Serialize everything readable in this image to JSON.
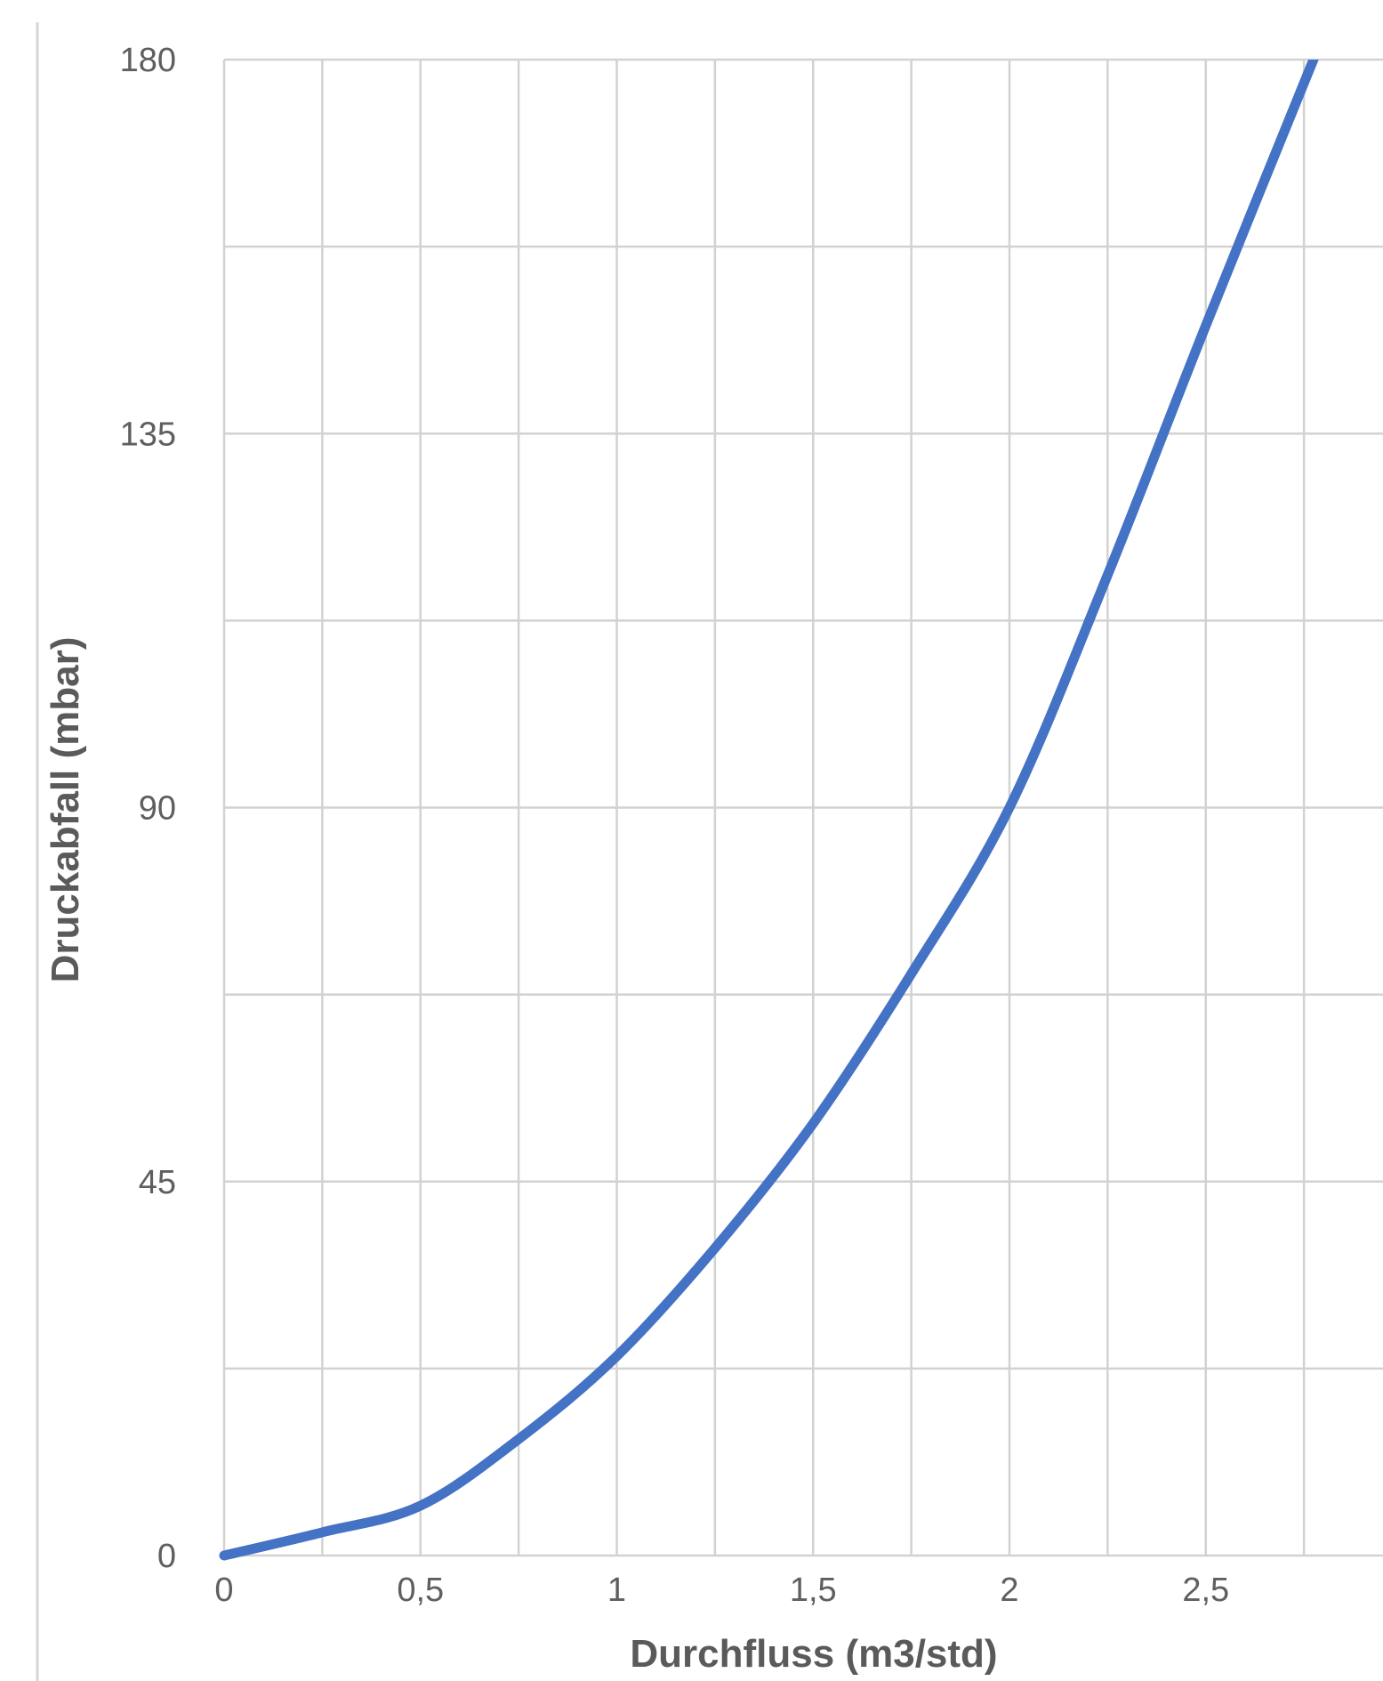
{
  "chart_data": {
    "type": "line",
    "title": "",
    "xlabel": "Durchfluss (m3/std)",
    "ylabel": "Druckabfall (mbar)",
    "xlim": [
      0,
      2.95
    ],
    "ylim": [
      0,
      180
    ],
    "x_ticks": [
      0,
      0.5,
      1,
      1.5,
      2,
      2.5
    ],
    "x_tick_labels": [
      "0",
      "0,5",
      "1",
      "1,5",
      "2",
      "2,5"
    ],
    "y_ticks": [
      0,
      45,
      90,
      135,
      180
    ],
    "y_tick_labels": [
      "0",
      "45",
      "90",
      "135",
      "180"
    ],
    "x_minor_step": 0.25,
    "y_minor_step": 22.5,
    "grid": true,
    "color": "#4472c4",
    "series": [
      {
        "x": [
          0,
          0.25,
          0.5,
          0.75,
          1.0,
          1.25,
          1.5,
          1.75,
          2.0,
          2.25,
          2.5,
          2.8
        ],
        "y": [
          0,
          2.8,
          6,
          14,
          24,
          37,
          52,
          70,
          90,
          118,
          148,
          183
        ]
      }
    ]
  }
}
